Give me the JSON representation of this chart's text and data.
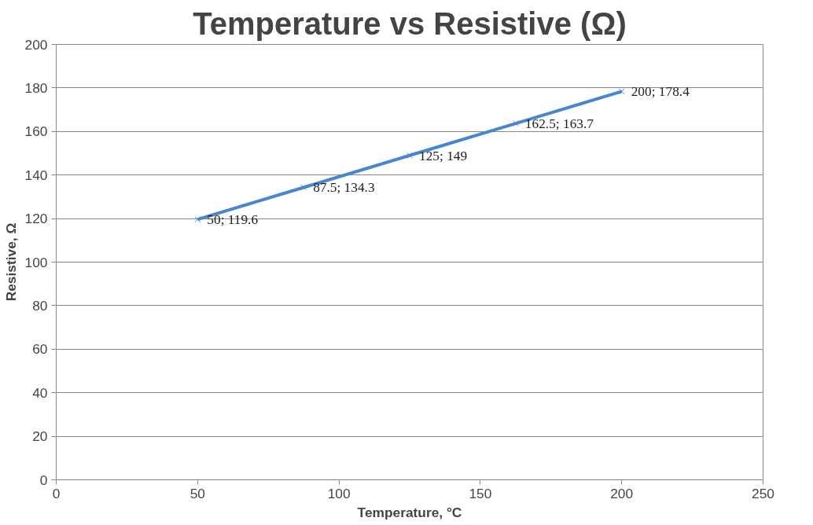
{
  "chart_data": {
    "type": "line",
    "title": "Temperature vs Resistive (Ω)",
    "xlabel": "Temperature, °C",
    "ylabel": "Resistive, Ω",
    "x": [
      50,
      87.5,
      125,
      162.5,
      200
    ],
    "series": [
      {
        "color": "#4a86d0",
        "values": [
          119.6,
          134.3,
          149,
          163.7,
          178.4
        ],
        "value_labels": [
          "50; 119.6",
          "87.5; 134.3",
          "125; 149",
          "162.5; 163.7",
          "200; 178.4"
        ]
      }
    ],
    "xlim": [
      0,
      250
    ],
    "xticks": [
      0,
      50,
      100,
      150,
      200,
      250
    ],
    "ylim": [
      0,
      200
    ],
    "yticks": [
      0,
      20,
      40,
      60,
      80,
      100,
      120,
      140,
      160,
      180,
      200
    ],
    "grid": "y",
    "marker": "cross",
    "line_style": "solid"
  }
}
